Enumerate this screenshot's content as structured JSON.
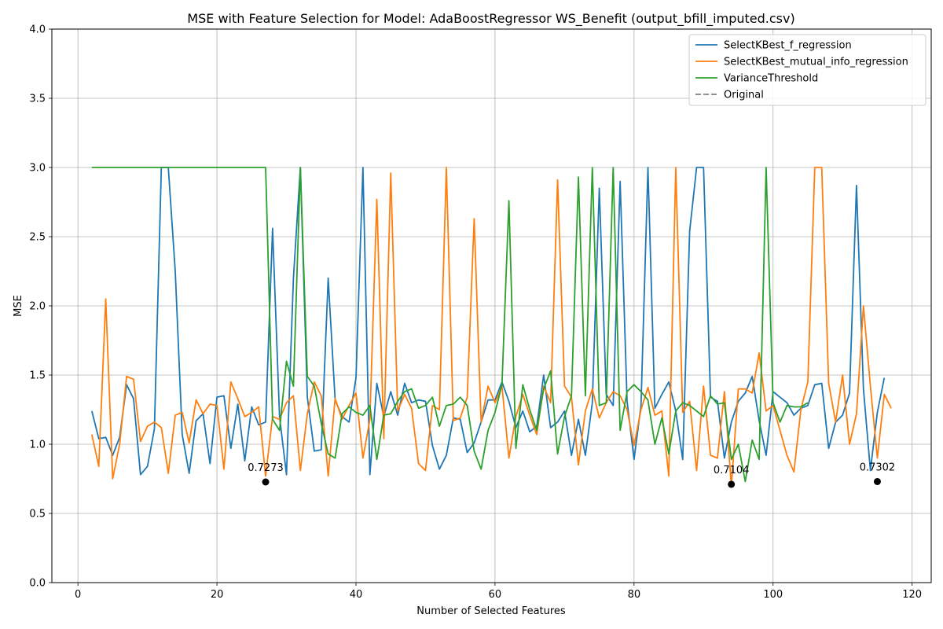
{
  "chart_data": {
    "type": "line",
    "title": "MSE with Feature Selection for Model: AdaBoostRegressor WS_Benefit (output_bfill_imputed.csv)",
    "xlabel": "Number of Selected Features",
    "ylabel": "MSE",
    "xlim": [
      -3.75,
      122.75
    ],
    "ylim": [
      0,
      4
    ],
    "xticks": [
      0,
      20,
      40,
      60,
      80,
      100,
      120
    ],
    "yticks": [
      0.0,
      0.5,
      1.0,
      1.5,
      2.0,
      2.5,
      3.0,
      3.5,
      4.0
    ],
    "ytick_labels": [
      "0.0",
      "0.5",
      "1.0",
      "1.5",
      "2.0",
      "2.5",
      "3.0",
      "3.5",
      "4.0"
    ],
    "grid": true,
    "legend_position": "top-right",
    "x_start": 2,
    "series": [
      {
        "name": "SelectKBest_f_regression",
        "color": "#1f77b4",
        "dashed": false,
        "values": [
          1.24,
          1.04,
          1.05,
          0.92,
          1.05,
          1.43,
          1.33,
          0.78,
          0.84,
          1.11,
          3.0,
          3.0,
          2.25,
          1.07,
          0.79,
          1.17,
          1.22,
          0.86,
          1.34,
          1.35,
          0.97,
          1.29,
          0.88,
          1.27,
          1.14,
          1.16,
          2.56,
          1.2,
          0.78,
          2.2,
          3.0,
          1.34,
          0.95,
          0.96,
          2.2,
          1.32,
          1.2,
          1.16,
          1.48,
          3.0,
          0.78,
          1.44,
          1.2,
          1.38,
          1.21,
          1.44,
          1.3,
          1.32,
          1.31,
          0.99,
          0.82,
          0.92,
          1.19,
          1.18,
          0.94,
          1.01,
          1.16,
          1.32,
          1.32,
          1.45,
          1.31,
          1.12,
          1.24,
          1.09,
          1.13,
          1.5,
          1.12,
          1.16,
          1.24,
          0.92,
          1.18,
          0.92,
          1.3,
          2.85,
          1.36,
          1.28,
          2.9,
          1.31,
          0.89,
          1.28,
          3.0,
          1.26,
          1.36,
          1.45,
          1.24,
          0.89,
          2.54,
          3.0,
          3.0,
          1.34,
          1.31,
          0.9,
          1.16,
          1.31,
          1.37,
          1.49,
          1.17,
          0.92,
          1.38,
          1.34,
          1.3,
          1.21,
          1.26,
          1.28,
          1.43,
          1.44,
          0.97,
          1.16,
          1.21,
          1.37,
          2.87,
          1.4,
          0.81,
          1.23,
          1.48
        ]
      },
      {
        "name": "SelectKBest_mutual_info_regression",
        "color": "#ff7f0e",
        "dashed": false,
        "values": [
          1.07,
          0.84,
          2.05,
          0.75,
          1.0,
          1.49,
          1.47,
          1.02,
          1.13,
          1.16,
          1.12,
          0.79,
          1.21,
          1.23,
          1.01,
          1.32,
          1.22,
          1.29,
          1.28,
          0.82,
          1.45,
          1.33,
          1.2,
          1.23,
          1.27,
          0.77,
          1.2,
          1.18,
          1.3,
          1.35,
          0.81,
          1.22,
          1.45,
          1.35,
          0.77,
          1.33,
          1.18,
          1.28,
          1.37,
          0.9,
          1.18,
          2.77,
          1.04,
          2.96,
          1.24,
          1.36,
          1.26,
          0.86,
          0.81,
          1.28,
          1.25,
          3.0,
          1.17,
          1.19,
          1.34,
          2.63,
          1.16,
          1.42,
          1.3,
          1.42,
          0.9,
          1.2,
          1.36,
          1.21,
          1.07,
          1.42,
          1.3,
          2.91,
          1.42,
          1.34,
          0.85,
          1.24,
          1.4,
          1.19,
          1.3,
          1.38,
          1.35,
          1.25,
          0.99,
          1.25,
          1.41,
          1.21,
          1.24,
          0.77,
          3.0,
          1.23,
          1.31,
          0.81,
          1.42,
          0.92,
          0.9,
          1.38,
          0.7,
          1.4,
          1.4,
          1.37,
          1.66,
          1.24,
          1.28,
          1.1,
          0.92,
          0.8,
          1.25,
          1.45,
          3.0,
          3.0,
          1.44,
          1.16,
          1.5,
          1.0,
          1.22,
          2.0,
          1.42,
          0.9,
          1.36,
          1.26
        ]
      },
      {
        "name": "VarianceThreshold",
        "color": "#2ca02c",
        "dashed": false,
        "values": [
          3.0,
          3.0,
          3.0,
          3.0,
          3.0,
          3.0,
          3.0,
          3.0,
          3.0,
          3.0,
          3.0,
          3.0,
          3.0,
          3.0,
          3.0,
          3.0,
          3.0,
          3.0,
          3.0,
          3.0,
          3.0,
          3.0,
          3.0,
          3.0,
          3.0,
          3.0,
          1.18,
          1.1,
          1.6,
          1.42,
          3.0,
          1.49,
          1.42,
          1.15,
          0.93,
          0.9,
          1.22,
          1.27,
          1.23,
          1.21,
          1.28,
          0.89,
          1.21,
          1.22,
          1.31,
          1.38,
          1.4,
          1.26,
          1.28,
          1.34,
          1.13,
          1.28,
          1.29,
          1.34,
          1.28,
          0.95,
          0.82,
          1.1,
          1.23,
          1.43,
          2.76,
          0.97,
          1.43,
          1.25,
          1.1,
          1.4,
          1.53,
          0.93,
          1.2,
          1.35,
          2.93,
          1.35,
          3.0,
          1.28,
          1.3,
          3.0,
          1.1,
          1.38,
          1.43,
          1.38,
          1.32,
          1.0,
          1.19,
          0.93,
          1.24,
          1.3,
          1.28,
          1.24,
          1.2,
          1.35,
          1.29,
          1.3,
          0.89,
          1.0,
          0.73,
          1.03,
          0.89,
          3.0,
          1.3,
          1.16,
          1.28,
          1.27,
          1.27,
          1.3
        ]
      },
      {
        "name": "Original",
        "color": "#808080",
        "dashed": true,
        "values": []
      }
    ],
    "annotations": [
      {
        "label": "0.7273",
        "x": 27,
        "y": 0.7273
      },
      {
        "label": "0.7104",
        "x": 94,
        "y": 0.7104
      },
      {
        "label": "0.7302",
        "x": 115,
        "y": 0.7302
      }
    ]
  }
}
